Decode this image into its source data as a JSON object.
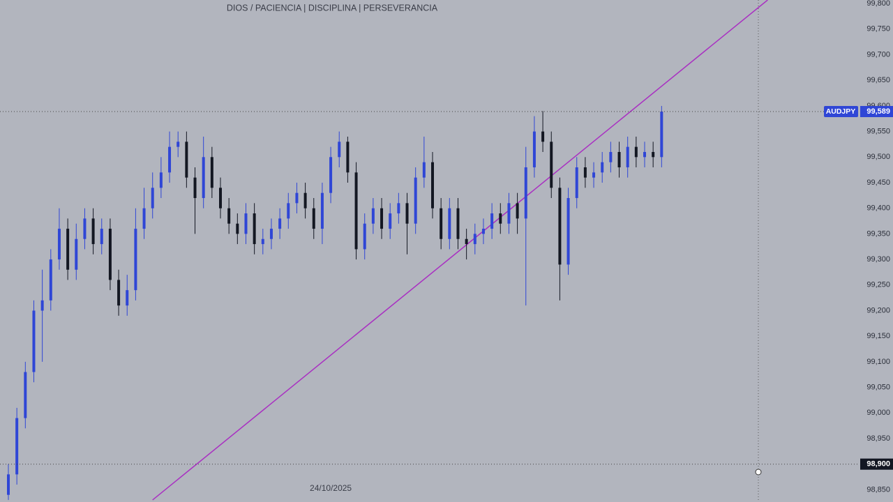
{
  "chart_data": {
    "type": "candlestick",
    "title": "DIOS / PACIENCIA  |  DISCIPLINA  |  PERSEVERANCIA",
    "symbol": "AUDJPY",
    "categories": [
      null,
      null,
      null,
      null,
      null,
      null,
      null,
      null,
      null,
      null,
      null,
      null,
      null,
      null,
      null,
      null,
      null,
      null,
      null,
      null,
      null,
      null,
      null,
      null,
      null,
      null,
      null,
      null,
      null,
      null,
      null,
      null,
      null,
      null,
      null,
      null,
      null,
      null,
      "24/10/2025",
      null,
      null,
      null,
      null,
      null,
      null,
      null,
      null,
      null,
      null,
      null,
      null,
      null,
      null,
      null,
      null,
      null,
      null,
      null,
      null,
      null,
      null,
      null,
      null,
      null,
      null,
      null,
      null,
      null,
      null,
      null,
      null,
      null,
      null,
      null,
      null,
      null,
      null,
      null
    ],
    "open": [
      98.84,
      98.88,
      98.99,
      99.08,
      99.2,
      99.22,
      99.3,
      99.36,
      99.28,
      99.34,
      99.38,
      99.33,
      99.36,
      99.26,
      99.21,
      99.24,
      99.36,
      99.4,
      99.44,
      99.47,
      99.52,
      99.53,
      99.46,
      99.42,
      99.5,
      99.44,
      99.4,
      99.37,
      99.35,
      99.39,
      99.33,
      99.34,
      99.36,
      99.38,
      99.41,
      99.43,
      99.4,
      99.36,
      99.43,
      99.5,
      99.53,
      99.47,
      99.32,
      99.37,
      99.4,
      99.36,
      99.39,
      99.41,
      99.37,
      99.46,
      99.49,
      99.4,
      99.34,
      99.4,
      99.34,
      99.33,
      99.35,
      99.36,
      99.39,
      99.37,
      99.41,
      99.38,
      99.48,
      99.55,
      99.53,
      99.44,
      99.29,
      99.42,
      99.48,
      99.46,
      99.47,
      99.49,
      99.51,
      99.48,
      99.52,
      99.5,
      99.51,
      99.5
    ],
    "high": [
      98.9,
      99.01,
      99.1,
      99.22,
      99.28,
      99.32,
      99.4,
      99.38,
      99.37,
      99.4,
      99.4,
      99.38,
      99.38,
      99.28,
      99.27,
      99.4,
      99.44,
      99.47,
      99.5,
      99.55,
      99.55,
      99.55,
      99.48,
      99.54,
      99.52,
      99.46,
      99.42,
      99.39,
      99.41,
      99.41,
      99.36,
      99.38,
      99.4,
      99.43,
      99.45,
      99.45,
      99.42,
      99.45,
      99.52,
      99.55,
      99.54,
      99.49,
      99.39,
      99.42,
      99.42,
      99.41,
      99.43,
      99.43,
      99.48,
      99.54,
      99.51,
      99.42,
      99.42,
      99.42,
      99.36,
      99.37,
      99.38,
      99.41,
      99.41,
      99.43,
      99.43,
      99.52,
      99.58,
      99.59,
      99.55,
      99.46,
      99.44,
      99.5,
      99.5,
      99.49,
      99.51,
      99.53,
      99.53,
      99.54,
      99.54,
      99.53,
      99.53,
      99.6
    ],
    "low": [
      98.83,
      98.86,
      98.97,
      99.06,
      99.1,
      99.2,
      99.28,
      99.26,
      99.26,
      99.32,
      99.31,
      99.31,
      99.24,
      99.19,
      99.19,
      99.22,
      99.34,
      99.38,
      99.42,
      99.45,
      99.5,
      99.44,
      99.35,
      99.4,
      99.42,
      99.38,
      99.35,
      99.33,
      99.33,
      99.31,
      99.31,
      99.32,
      99.34,
      99.36,
      99.39,
      99.38,
      99.34,
      99.33,
      99.41,
      99.48,
      99.45,
      99.3,
      99.3,
      99.35,
      99.34,
      99.34,
      99.37,
      99.31,
      99.35,
      99.44,
      99.38,
      99.32,
      99.32,
      99.32,
      99.3,
      99.31,
      99.33,
      99.34,
      99.35,
      99.35,
      99.35,
      99.21,
      99.46,
      99.51,
      99.42,
      99.22,
      99.27,
      99.4,
      99.44,
      99.44,
      99.45,
      99.47,
      99.46,
      99.46,
      99.48,
      99.48,
      99.48,
      99.48
    ],
    "close": [
      98.88,
      98.99,
      99.08,
      99.2,
      99.22,
      99.3,
      99.36,
      99.28,
      99.34,
      99.38,
      99.33,
      99.36,
      99.26,
      99.21,
      99.24,
      99.36,
      99.4,
      99.44,
      99.47,
      99.52,
      99.53,
      99.46,
      99.42,
      99.5,
      99.44,
      99.4,
      99.37,
      99.35,
      99.39,
      99.33,
      99.34,
      99.36,
      99.38,
      99.41,
      99.43,
      99.4,
      99.36,
      99.43,
      99.5,
      99.53,
      99.47,
      99.32,
      99.37,
      99.4,
      99.36,
      99.39,
      99.41,
      99.37,
      99.46,
      99.49,
      99.4,
      99.34,
      99.4,
      99.34,
      99.33,
      99.35,
      99.36,
      99.39,
      99.37,
      99.41,
      99.38,
      99.48,
      99.55,
      99.53,
      99.44,
      99.29,
      99.42,
      99.48,
      99.46,
      99.47,
      99.49,
      99.51,
      99.48,
      99.52,
      99.5,
      99.51,
      99.5,
      99.589
    ],
    "up_color": "#2f46d6",
    "down_color": "#131722",
    "last_price": {
      "value": 99.589,
      "label": "99,589"
    },
    "crosshair": {
      "value": 98.9,
      "label": "98,900"
    },
    "trendline": {
      "color": "#a92fc2",
      "from": [
        17,
        98.83
      ],
      "to": [
        89.5,
        99.807
      ]
    },
    "ylim": [
      98.826,
      99.807
    ],
    "yticks": [
      {
        "value": 99.8,
        "label": "99,800"
      },
      {
        "value": 99.75,
        "label": "99,750"
      },
      {
        "value": 99.7,
        "label": "99,700"
      },
      {
        "value": 99.65,
        "label": "99,650"
      },
      {
        "value": 99.6,
        "label": "99,600"
      },
      {
        "value": 99.55,
        "label": "99,550"
      },
      {
        "value": 99.5,
        "label": "99,500"
      },
      {
        "value": 99.45,
        "label": "99,450"
      },
      {
        "value": 99.4,
        "label": "99,400"
      },
      {
        "value": 99.35,
        "label": "99,350"
      },
      {
        "value": 99.3,
        "label": "99,300"
      },
      {
        "value": 99.25,
        "label": "99,250"
      },
      {
        "value": 99.2,
        "label": "99,200"
      },
      {
        "value": 99.15,
        "label": "99,150"
      },
      {
        "value": 99.1,
        "label": "99,100"
      },
      {
        "value": 99.05,
        "label": "99,050"
      },
      {
        "value": 99,
        "label": "99,000"
      },
      {
        "value": 98.95,
        "label": "98,950"
      },
      {
        "value": 98.9,
        "label": "98,900"
      },
      {
        "value": 98.85,
        "label": "98,850"
      }
    ]
  }
}
